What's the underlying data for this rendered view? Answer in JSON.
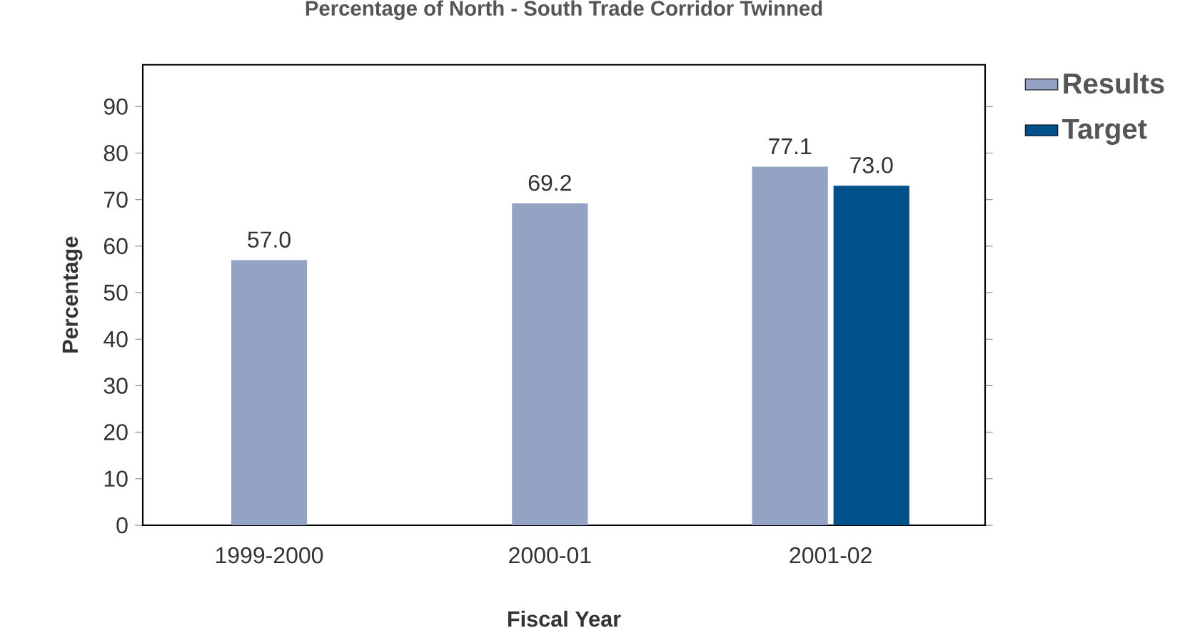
{
  "chart_data": {
    "type": "bar",
    "title": "Percentage of North - South Trade Corridor Twinned",
    "xlabel": "Fiscal Year",
    "ylabel": "Percentage",
    "categories": [
      "1999-2000",
      "2000-01",
      "2001-02"
    ],
    "series": [
      {
        "name": "Results",
        "color": "#94a3c4",
        "values": [
          57.0,
          69.2,
          77.1
        ],
        "value_labels": [
          "57.0",
          "69.2",
          "77.1"
        ]
      },
      {
        "name": "Target",
        "color": "#00508a",
        "values": [
          null,
          null,
          73.0
        ],
        "value_labels": [
          null,
          null,
          "73.0"
        ]
      }
    ],
    "ylim": [
      0,
      99
    ],
    "yticks": [
      0,
      10,
      20,
      30,
      40,
      50,
      60,
      70,
      80,
      90
    ],
    "legend": "top right",
    "grid": false
  }
}
